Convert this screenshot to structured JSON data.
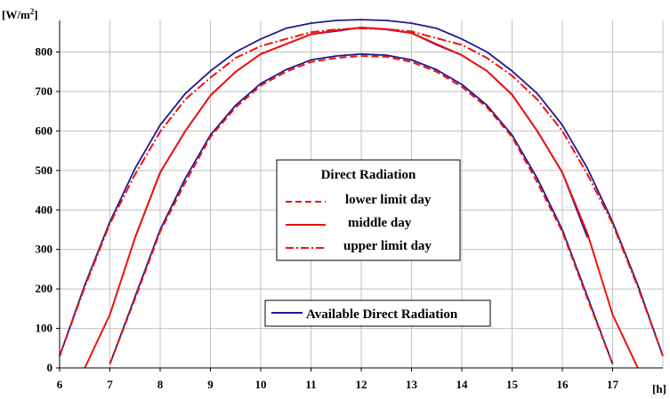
{
  "chart_data": {
    "type": "line",
    "ylabel_unit": "[W/m",
    "ylabel_unit_sup": "2",
    "ylabel_unit_close": "]",
    "xlabel_unit": "[h]",
    "xlim": [
      6,
      18
    ],
    "ylim": [
      0,
      880
    ],
    "x_ticks": [
      "6",
      "7",
      "8",
      "9",
      "10",
      "11",
      "12",
      "13",
      "14",
      "15",
      "16",
      "17"
    ],
    "y_ticks": [
      "0",
      "100",
      "200",
      "300",
      "400",
      "500",
      "600",
      "700",
      "800"
    ],
    "grid": true,
    "legends": [
      {
        "title": "Direct Radiation",
        "placement": "center",
        "entries": [
          "lower limit day",
          "middle day",
          "upper limit day"
        ]
      },
      {
        "placement": "lower-center",
        "entries": [
          "Available Direct Radiation"
        ]
      }
    ],
    "series": [
      {
        "name": "Available Direct Radiation",
        "color": "#1f1a8f",
        "style": "solid",
        "x": [
          6,
          6.5,
          7,
          7.5,
          8,
          8.5,
          9,
          9.5,
          10,
          10.5,
          11,
          11.5,
          12,
          12.5,
          13,
          13.5,
          14,
          14.5,
          15,
          15.5,
          16,
          16.5,
          17,
          17.5,
          18
        ],
        "y": [
          30,
          210,
          370,
          505,
          615,
          695,
          752,
          800,
          833,
          860,
          873,
          880,
          882,
          880,
          873,
          860,
          833,
          800,
          752,
          695,
          615,
          505,
          370,
          210,
          30
        ]
      },
      {
        "name": "Available Direct Radiation",
        "color": "#1f1a8f",
        "style": "solid",
        "x": [
          7,
          7.5,
          8,
          8.5,
          9,
          9.5,
          10,
          10.5,
          11,
          11.5,
          12,
          12.5,
          13,
          13.5,
          14,
          14.5,
          15,
          15.5,
          16,
          16.5,
          17
        ],
        "y": [
          10,
          180,
          350,
          480,
          590,
          665,
          720,
          755,
          780,
          790,
          795,
          792,
          780,
          755,
          718,
          665,
          590,
          480,
          350,
          180,
          10
        ]
      },
      {
        "name": "Available Direct Radiation",
        "color": "#1f1a8f",
        "style": "solid",
        "x": [
          7.5,
          8,
          8.5,
          9,
          9.5,
          10,
          10.5,
          11,
          11.5,
          12,
          12.5,
          13,
          13.5,
          14,
          14.5,
          15,
          15.5,
          16,
          16.5
        ],
        "y": [
          330,
          495,
          600,
          690,
          750,
          795,
          820,
          845,
          853,
          862,
          857,
          848,
          818,
          792,
          752,
          692,
          600,
          495,
          330
        ]
      },
      {
        "name": "upper limit day",
        "color": "#ee1111",
        "style": "dashdot",
        "x": [
          6,
          6.5,
          7,
          7.5,
          8,
          8.5,
          9,
          9.5,
          10,
          10.5,
          11,
          11.5,
          12,
          12.5,
          13,
          13.5,
          14,
          14.5,
          15,
          15.5,
          16,
          16.5,
          17,
          17.5,
          18
        ],
        "y": [
          30,
          205,
          365,
          490,
          598,
          680,
          735,
          785,
          815,
          833,
          850,
          857,
          860,
          858,
          852,
          835,
          818,
          785,
          740,
          680,
          600,
          490,
          365,
          205,
          30
        ]
      },
      {
        "name": "middle day",
        "color": "#ee1111",
        "style": "solid",
        "x": [
          6.5,
          7,
          7.5,
          8,
          8.5,
          9,
          9.5,
          10,
          10.5,
          11,
          11.5,
          12,
          12.5,
          13,
          13.5,
          14,
          14.5,
          15,
          15.5,
          16,
          16.5,
          17,
          17.5
        ],
        "y": [
          0,
          135,
          330,
          495,
          600,
          690,
          750,
          795,
          820,
          845,
          855,
          862,
          858,
          848,
          820,
          792,
          752,
          692,
          600,
          495,
          340,
          135,
          0
        ]
      },
      {
        "name": "lower limit day",
        "color": "#ee1111",
        "style": "dashed",
        "x": [
          7,
          7.5,
          8,
          8.5,
          9,
          9.5,
          10,
          10.5,
          11,
          11.5,
          12,
          12.5,
          13,
          13.5,
          14,
          14.5,
          15,
          15.5,
          16,
          16.5,
          17
        ],
        "y": [
          10,
          175,
          345,
          470,
          585,
          660,
          715,
          750,
          775,
          785,
          790,
          788,
          775,
          750,
          712,
          660,
          585,
          470,
          345,
          175,
          10
        ]
      }
    ]
  }
}
